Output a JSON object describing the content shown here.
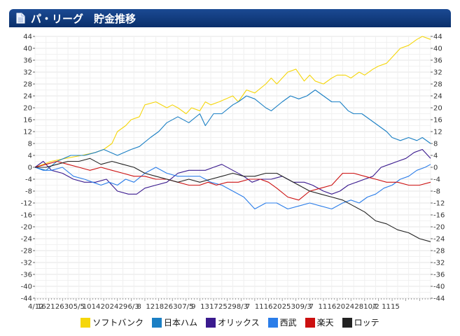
{
  "page": {
    "title": "パ・リーグ　貯金推移",
    "icon": "document-icon"
  },
  "chart_data": {
    "type": "line",
    "title": "パ・リーグ　貯金推移",
    "ylim": [
      -44,
      44
    ],
    "yticks": [
      -44,
      -40,
      -36,
      -32,
      -28,
      -24,
      -20,
      -16,
      -12,
      -8,
      -4,
      0,
      4,
      8,
      12,
      16,
      20,
      24,
      28,
      32,
      36,
      40,
      44
    ],
    "ytick_labels": [
      "-44",
      "-40",
      "-36",
      "-32",
      "-28",
      "-24",
      "-20",
      "-16",
      "-12",
      "-8",
      "-4",
      "0",
      "4",
      "8",
      "12",
      "16",
      "20",
      "24",
      "28",
      "32",
      "36",
      "40",
      "44"
    ],
    "x_count": 145,
    "xtick_labels": [
      "4/12",
      "16",
      "21",
      "26",
      "30",
      "5/5",
      "10",
      "14",
      "20",
      "24",
      "29",
      "6/3",
      "8",
      "12",
      "18",
      "26",
      "30",
      "7/5",
      "9",
      "13",
      "17",
      "25",
      "29",
      "8/3",
      "7",
      "11",
      "16",
      "20",
      "25",
      "30",
      "9/3",
      "7",
      "11",
      "16",
      "20",
      "24",
      "28",
      "10/2",
      "7",
      "11",
      "15"
    ],
    "grid": true,
    "legend_position": "bottom",
    "series": [
      {
        "name": "ソフトバンク",
        "color": "#f5d60a",
        "x": [
          0,
          6,
          11,
          17,
          22,
          25,
          28,
          30,
          33,
          35,
          38,
          40,
          44,
          48,
          50,
          52,
          55,
          57,
          60,
          62,
          64,
          67,
          72,
          74,
          77,
          80,
          84,
          86,
          88,
          90,
          92,
          95,
          98,
          100,
          102,
          105,
          108,
          110,
          113,
          115,
          118,
          120,
          123,
          125,
          128,
          130,
          133,
          136,
          139,
          141,
          144
        ],
        "y": [
          0,
          2,
          3,
          4,
          5,
          6,
          8,
          12,
          14,
          16,
          17,
          21,
          22,
          20,
          21,
          20,
          18,
          20,
          19,
          22,
          21,
          22,
          24,
          22,
          26,
          25,
          28,
          30,
          28,
          30,
          32,
          33,
          29,
          31,
          29,
          28,
          30,
          31,
          31,
          30,
          32,
          31,
          33,
          34,
          35,
          37,
          40,
          41,
          43,
          44,
          43
        ]
      },
      {
        "name": "日本ハム",
        "color": "#1a7fc4",
        "x": [
          0,
          4,
          8,
          13,
          18,
          22,
          25,
          30,
          35,
          38,
          42,
          45,
          48,
          52,
          56,
          60,
          62,
          65,
          68,
          72,
          74,
          77,
          80,
          84,
          86,
          90,
          93,
          96,
          99,
          102,
          105,
          108,
          111,
          114,
          116,
          119,
          122,
          125,
          128,
          130,
          133,
          136,
          139,
          141,
          144
        ],
        "y": [
          0,
          -1,
          2,
          4,
          4,
          5,
          6,
          4,
          6,
          7,
          10,
          12,
          15,
          17,
          15,
          18,
          14,
          18,
          18,
          21,
          22,
          24,
          23,
          20,
          19,
          22,
          24,
          23,
          24,
          26,
          24,
          22,
          22,
          19,
          18,
          18,
          16,
          14,
          12,
          10,
          9,
          10,
          9,
          10,
          8
        ]
      },
      {
        "name": "オリックス",
        "color": "#3a1a8e",
        "x": [
          0,
          3,
          6,
          10,
          14,
          18,
          22,
          26,
          30,
          34,
          37,
          40,
          44,
          48,
          52,
          56,
          60,
          62,
          65,
          68,
          72,
          76,
          79,
          82,
          86,
          90,
          94,
          98,
          101,
          105,
          108,
          111,
          114,
          117,
          120,
          123,
          126,
          129,
          132,
          135,
          138,
          141,
          144
        ],
        "y": [
          0,
          2,
          -1,
          -2,
          -4,
          -5,
          -5,
          -4,
          -8,
          -9,
          -9,
          -7,
          -6,
          -5,
          -2,
          -1,
          -1,
          -1,
          0,
          1,
          -1,
          -3,
          -5,
          -4,
          -4,
          -3,
          -5,
          -5,
          -6,
          -8,
          -9,
          -8,
          -6,
          -5,
          -4,
          -3,
          0,
          1,
          2,
          3,
          5,
          6,
          3
        ]
      },
      {
        "name": "西武",
        "color": "#2b7de9",
        "x": [
          0,
          3,
          6,
          10,
          14,
          18,
          21,
          24,
          27,
          30,
          33,
          36,
          40,
          44,
          48,
          52,
          56,
          60,
          64,
          68,
          72,
          76,
          80,
          84,
          88,
          92,
          96,
          100,
          104,
          108,
          112,
          115,
          118,
          121,
          124,
          127,
          130,
          133,
          136,
          139,
          142,
          144
        ],
        "y": [
          0,
          -1,
          -1,
          0,
          -3,
          -4,
          -5,
          -6,
          -5,
          -6,
          -4,
          -5,
          -2,
          0,
          -2,
          -3,
          -3,
          -3,
          -5,
          -6,
          -8,
          -10,
          -14,
          -12,
          -12,
          -14,
          -13,
          -12,
          -13,
          -14,
          -12,
          -11,
          -12,
          -10,
          -9,
          -7,
          -6,
          -4,
          -3,
          -1,
          0,
          1
        ]
      },
      {
        "name": "楽天",
        "color": "#cc1010",
        "x": [
          0,
          4,
          8,
          12,
          16,
          20,
          24,
          28,
          32,
          36,
          40,
          44,
          48,
          52,
          56,
          60,
          63,
          66,
          70,
          74,
          78,
          82,
          85,
          88,
          92,
          96,
          100,
          104,
          108,
          112,
          116,
          120,
          124,
          128,
          132,
          136,
          140,
          144
        ],
        "y": [
          0,
          1,
          2,
          1,
          0,
          -1,
          0,
          -1,
          -2,
          -3,
          -3,
          -4,
          -4,
          -5,
          -6,
          -6,
          -5,
          -6,
          -5,
          -5,
          -4,
          -4,
          -5,
          -7,
          -10,
          -11,
          -8,
          -7,
          -6,
          -2,
          -2,
          -3,
          -4,
          -5,
          -5,
          -6,
          -6,
          -5
        ]
      },
      {
        "name": "ロッテ",
        "color": "#222222",
        "x": [
          0,
          4,
          8,
          12,
          16,
          20,
          24,
          28,
          32,
          36,
          40,
          44,
          48,
          52,
          56,
          60,
          64,
          68,
          72,
          76,
          80,
          84,
          88,
          92,
          96,
          100,
          104,
          108,
          112,
          116,
          120,
          124,
          128,
          132,
          136,
          140,
          144
        ],
        "y": [
          0,
          0,
          1,
          2,
          2,
          3,
          1,
          2,
          1,
          0,
          -2,
          -3,
          -4,
          -5,
          -4,
          -5,
          -4,
          -3,
          -2,
          -3,
          -3,
          -2,
          -2,
          -4,
          -6,
          -8,
          -9,
          -10,
          -11,
          -13,
          -15,
          -18,
          -19,
          -21,
          -22,
          -24,
          -25
        ]
      }
    ]
  }
}
